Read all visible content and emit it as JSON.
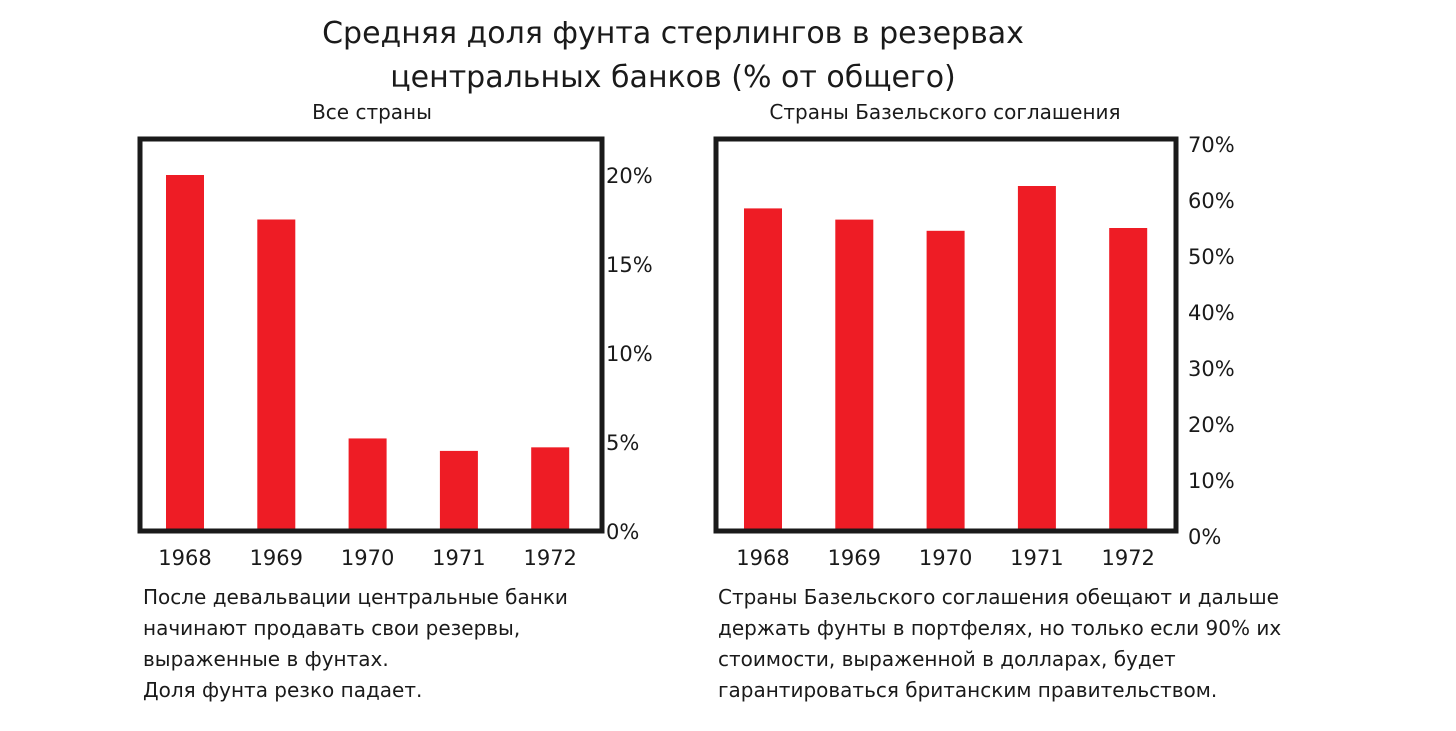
{
  "title": {
    "line1": "Средняя доля фунта стерлингов в резервах",
    "line2": "центральных банков (% от общего)"
  },
  "colors": {
    "bar": "#ee1c25",
    "frame": "#1a1a1a",
    "text": "#1a1a1a"
  },
  "chart_data": [
    {
      "type": "bar",
      "title": "Все страны",
      "categories": [
        "1968",
        "1969",
        "1970",
        "1971",
        "1972"
      ],
      "values": [
        20.0,
        17.5,
        5.2,
        4.5,
        4.7
      ],
      "ylim": [
        0,
        22
      ],
      "yticks": [
        0,
        5,
        10,
        15,
        20
      ],
      "ytick_labels": [
        "0%",
        "5%",
        "10%",
        "15%",
        "20%"
      ],
      "yaxis_position": "right",
      "grid": false,
      "caption": [
        "После девальвации центральные банки",
        "начинают продавать свои резервы,",
        "выраженные в фунтах.",
        "Доля фунта резко падает."
      ]
    },
    {
      "type": "bar",
      "title": "Страны Базельского соглашения",
      "categories": [
        "1968",
        "1969",
        "1970",
        "1971",
        "1972"
      ],
      "values": [
        58.5,
        56.5,
        54.5,
        62.5,
        55.0
      ],
      "ylim": [
        0,
        70
      ],
      "yticks": [
        0,
        10,
        20,
        30,
        40,
        50,
        60,
        70
      ],
      "ytick_labels": [
        "0%",
        "10%",
        "20%",
        "30%",
        "40%",
        "50%",
        "60%",
        "70%"
      ],
      "yaxis_position": "right",
      "grid": false,
      "caption": [
        "Страны Базельского соглашения обещают и дальше",
        "держать фунты в портфелях, но только если 90% их",
        "стоимости, выраженной в долларах, будет",
        "гарантироваться британским правительством."
      ]
    }
  ]
}
